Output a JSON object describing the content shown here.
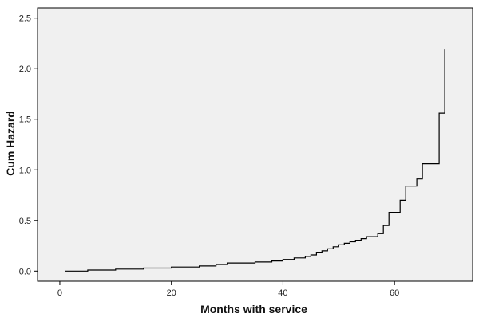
{
  "chart_data": {
    "type": "line",
    "step": true,
    "xlabel": "Months with service",
    "ylabel": "Cum Hazard",
    "xlim": [
      -4,
      74
    ],
    "ylim": [
      -0.1,
      2.6
    ],
    "xticks": [
      0,
      20,
      40,
      60
    ],
    "yticks": [
      0.0,
      0.5,
      1.0,
      1.5,
      2.0,
      2.5
    ],
    "ytick_labels": [
      "0.0",
      "0.5",
      "1.0",
      "1.5",
      "2.0",
      "2.5"
    ],
    "grid": false,
    "legend": false,
    "colors": {
      "plot_bg": "#f0f0f0",
      "line": "#000000",
      "frame": "#000000"
    },
    "series": [
      {
        "x": [
          1,
          5,
          10,
          15,
          20,
          25,
          28,
          30,
          35,
          38,
          40,
          42,
          44,
          45,
          46,
          47,
          48,
          49,
          50,
          51,
          52,
          53,
          54,
          55,
          57,
          58,
          59,
          61,
          62,
          64,
          65,
          68,
          69
        ],
        "y": [
          0.0,
          0.01,
          0.02,
          0.03,
          0.04,
          0.05,
          0.065,
          0.08,
          0.09,
          0.1,
          0.115,
          0.13,
          0.145,
          0.16,
          0.18,
          0.2,
          0.22,
          0.24,
          0.26,
          0.275,
          0.29,
          0.305,
          0.32,
          0.34,
          0.37,
          0.45,
          0.58,
          0.7,
          0.84,
          0.91,
          1.06,
          1.56,
          2.19
        ]
      }
    ]
  }
}
